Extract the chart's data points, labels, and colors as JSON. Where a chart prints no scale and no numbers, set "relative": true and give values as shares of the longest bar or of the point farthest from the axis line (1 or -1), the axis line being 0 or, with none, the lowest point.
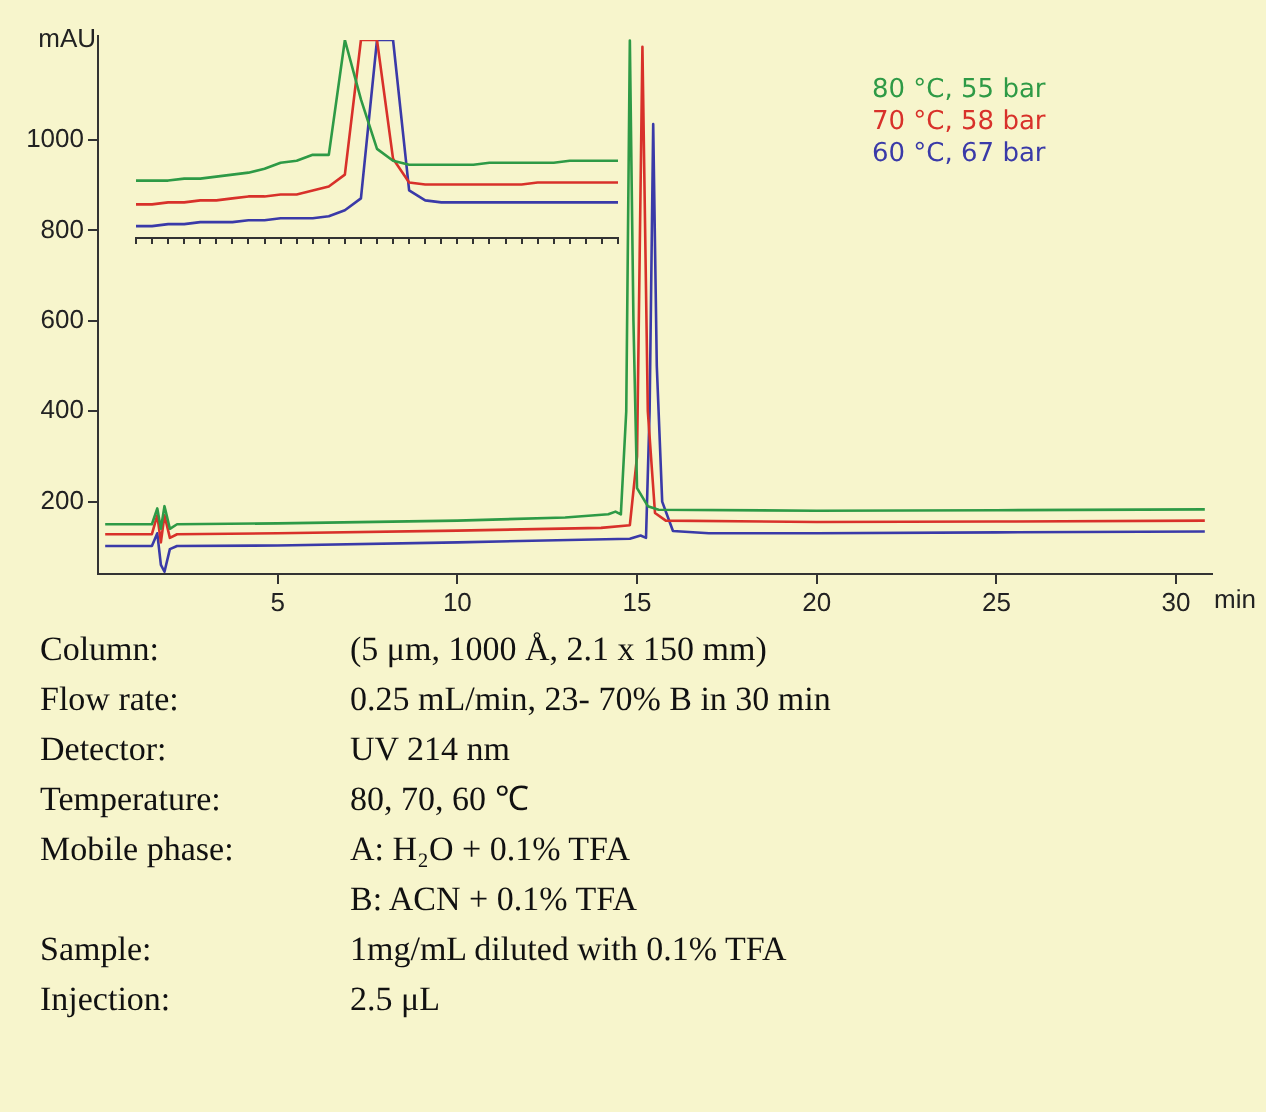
{
  "chart_data": [
    {
      "type": "line",
      "ylabel": "mAU",
      "xlabel": "min",
      "xlim": [
        0,
        31
      ],
      "ylim": [
        40,
        1230
      ],
      "xticks": [
        5,
        10,
        15,
        20,
        25,
        30
      ],
      "yticks": [
        200,
        400,
        600,
        800,
        1000
      ],
      "grid": false,
      "legend": "top right",
      "marker": "none",
      "line_style": "solid",
      "series": [
        {
          "name": "80 °C, 55 bar",
          "color": "#2e9a46",
          "x": [
            0.2,
            1.5,
            1.65,
            1.75,
            1.85,
            2.0,
            2.2,
            5,
            10,
            13,
            14.2,
            14.4,
            14.55,
            14.7,
            14.8,
            14.9,
            15.0,
            15.3,
            15.6,
            20,
            25,
            30.8
          ],
          "values": [
            150,
            150,
            185,
            140,
            190,
            140,
            150,
            152,
            158,
            165,
            172,
            178,
            172,
            400,
            1220,
            600,
            230,
            190,
            182,
            180,
            181,
            183
          ]
        },
        {
          "name": "70 °C, 58 bar",
          "color": "#d8312a",
          "x": [
            0.2,
            1.5,
            1.65,
            1.75,
            1.85,
            2.0,
            2.2,
            5,
            10,
            14,
            14.8,
            15.0,
            15.15,
            15.3,
            15.5,
            15.8,
            20,
            25,
            30.8
          ],
          "values": [
            128,
            128,
            170,
            110,
            170,
            120,
            128,
            130,
            136,
            142,
            148,
            300,
            1206,
            400,
            175,
            158,
            155,
            156,
            158
          ]
        },
        {
          "name": "60 °C, 67 bar",
          "color": "#3a3aa8",
          "x": [
            0.2,
            1.5,
            1.65,
            1.75,
            1.85,
            2.0,
            2.2,
            5,
            10,
            14.8,
            15.1,
            15.25,
            15.35,
            15.45,
            15.55,
            15.7,
            16,
            17,
            20,
            25,
            30.8
          ],
          "values": [
            102,
            102,
            130,
            60,
            45,
            95,
            102,
            103,
            110,
            118,
            125,
            120,
            400,
            1035,
            500,
            200,
            135,
            130,
            130,
            132,
            134
          ]
        }
      ],
      "annotations": [
        "Column:",
        "(5 μm, 1000 Å, 2.1 x 150 mm)",
        "Flow rate:",
        "0.25 mL/min, 23- 70% B in 30 min",
        "Detector:",
        "UV 214 nm",
        "Temperature:",
        "80, 70, 60 ℃",
        "Mobile phase:",
        "A: H₂O + 0.1% TFA\nB: ACN + 0.1% TFA",
        "Sample:",
        "1mg/mL diluted with 0.1% TFA",
        "Injection:",
        "2.5 μL"
      ]
    },
    {
      "type": "line",
      "relative": true,
      "grid": false,
      "marker": "none",
      "line_style": "solid",
      "categories": [
        null,
        null,
        null,
        null,
        null,
        null,
        null,
        null,
        null,
        null,
        null,
        null,
        null,
        null,
        null,
        null,
        null,
        null,
        null,
        null,
        null,
        null,
        null,
        null,
        null,
        null,
        null,
        null,
        null,
        null,
        null
      ],
      "series": [
        {
          "color": "#2e9a46",
          "values": [
            0.29,
            0.29,
            0.29,
            0.3,
            0.3,
            0.31,
            0.32,
            0.33,
            0.35,
            0.38,
            0.39,
            0.42,
            0.42,
            1,
            0.7,
            0.45,
            0.39,
            0.37,
            0.37,
            0.37,
            0.37,
            0.37,
            0.38,
            0.38,
            0.38,
            0.38,
            0.38,
            0.39,
            0.39,
            0.39,
            0.39
          ]
        },
        {
          "color": "#d8312a",
          "values": [
            0.17,
            0.17,
            0.18,
            0.18,
            0.19,
            0.19,
            0.2,
            0.21,
            0.21,
            0.22,
            0.22,
            0.24,
            0.26,
            0.32,
            1,
            1,
            0.4,
            0.28,
            0.27,
            0.27,
            0.27,
            0.27,
            0.27,
            0.27,
            0.27,
            0.28,
            0.28,
            0.28,
            0.28,
            0.28,
            0.28
          ]
        },
        {
          "color": "#3a3aa8",
          "values": [
            0.06,
            0.06,
            0.07,
            0.07,
            0.08,
            0.08,
            0.08,
            0.09,
            0.09,
            0.1,
            0.1,
            0.1,
            0.11,
            0.14,
            0.2,
            1,
            1,
            0.24,
            0.19,
            0.18,
            0.18,
            0.18,
            0.18,
            0.18,
            0.18,
            0.18,
            0.18,
            0.18,
            0.18,
            0.18,
            0.18
          ]
        }
      ]
    }
  ]
}
